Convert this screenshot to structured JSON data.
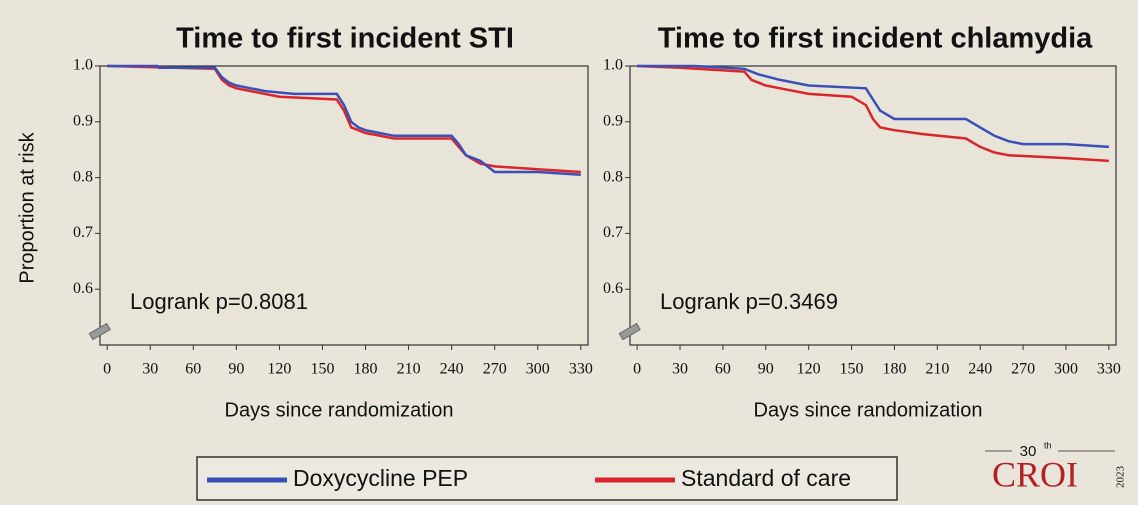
{
  "chart_data": [
    {
      "type": "line",
      "title": "Time to first incident STI",
      "ylabel": "Proportion at risk",
      "xlabel": "Days since randomization",
      "annotation": "Logrank p=0.8081",
      "xlim": [
        -5,
        335
      ],
      "ylim": [
        0.5,
        1.0
      ],
      "xticks": [
        0,
        30,
        60,
        90,
        120,
        150,
        180,
        210,
        240,
        270,
        300,
        330
      ],
      "yticks": [
        0.6,
        0.7,
        0.8,
        0.9,
        {
          "value": 1,
          "label": "1.0"
        }
      ],
      "series": [
        {
          "name": "Doxycycline PEP",
          "color": "#3a4fb8",
          "x": [
            0,
            35,
            36,
            75,
            80,
            85,
            90,
            100,
            110,
            130,
            160,
            165,
            170,
            175,
            180,
            200,
            240,
            245,
            250,
            260,
            270,
            300,
            330
          ],
          "values": [
            1.0,
            1.0,
            0.997,
            0.997,
            0.98,
            0.97,
            0.965,
            0.96,
            0.955,
            0.95,
            0.95,
            0.93,
            0.9,
            0.89,
            0.885,
            0.875,
            0.875,
            0.86,
            0.84,
            0.83,
            0.81,
            0.81,
            0.805
          ]
        },
        {
          "name": "Standard of care",
          "color": "#d8262a",
          "x": [
            0,
            30,
            75,
            80,
            85,
            90,
            100,
            120,
            160,
            165,
            170,
            180,
            200,
            240,
            245,
            250,
            260,
            270,
            300,
            330
          ],
          "values": [
            1.0,
            0.998,
            0.995,
            0.975,
            0.965,
            0.96,
            0.955,
            0.945,
            0.94,
            0.92,
            0.89,
            0.88,
            0.87,
            0.87,
            0.855,
            0.84,
            0.825,
            0.82,
            0.815,
            0.81
          ]
        }
      ]
    },
    {
      "type": "line",
      "title": "Time to first incident chlamydia",
      "xlabel": "Days since randomization",
      "annotation": "Logrank p=0.3469",
      "xlim": [
        -5,
        335
      ],
      "ylim": [
        0.5,
        1.0
      ],
      "xticks": [
        0,
        30,
        60,
        90,
        120,
        150,
        180,
        210,
        240,
        270,
        300,
        330
      ],
      "yticks": [
        0.6,
        0.7,
        0.8,
        0.9,
        {
          "value": 1,
          "label": "1.0"
        }
      ],
      "series": [
        {
          "color": "#3a4fb8",
          "x": [
            0,
            40,
            75,
            85,
            100,
            120,
            160,
            165,
            170,
            180,
            230,
            240,
            250,
            260,
            270,
            300,
            330
          ],
          "values": [
            1.0,
            1.0,
            0.995,
            0.985,
            0.975,
            0.965,
            0.96,
            0.94,
            0.92,
            0.905,
            0.905,
            0.89,
            0.875,
            0.865,
            0.86,
            0.86,
            0.855
          ]
        },
        {
          "color": "#d8262a",
          "x": [
            0,
            30,
            75,
            80,
            90,
            100,
            120,
            150,
            160,
            165,
            170,
            180,
            200,
            230,
            240,
            250,
            260,
            300,
            330
          ],
          "values": [
            1.0,
            0.997,
            0.99,
            0.975,
            0.965,
            0.96,
            0.95,
            0.945,
            0.93,
            0.905,
            0.89,
            0.885,
            0.878,
            0.87,
            0.855,
            0.845,
            0.84,
            0.835,
            0.83
          ]
        }
      ]
    }
  ],
  "logo": {
    "edition": "30",
    "superscript": "th",
    "name": "CROI",
    "year": "2023"
  }
}
